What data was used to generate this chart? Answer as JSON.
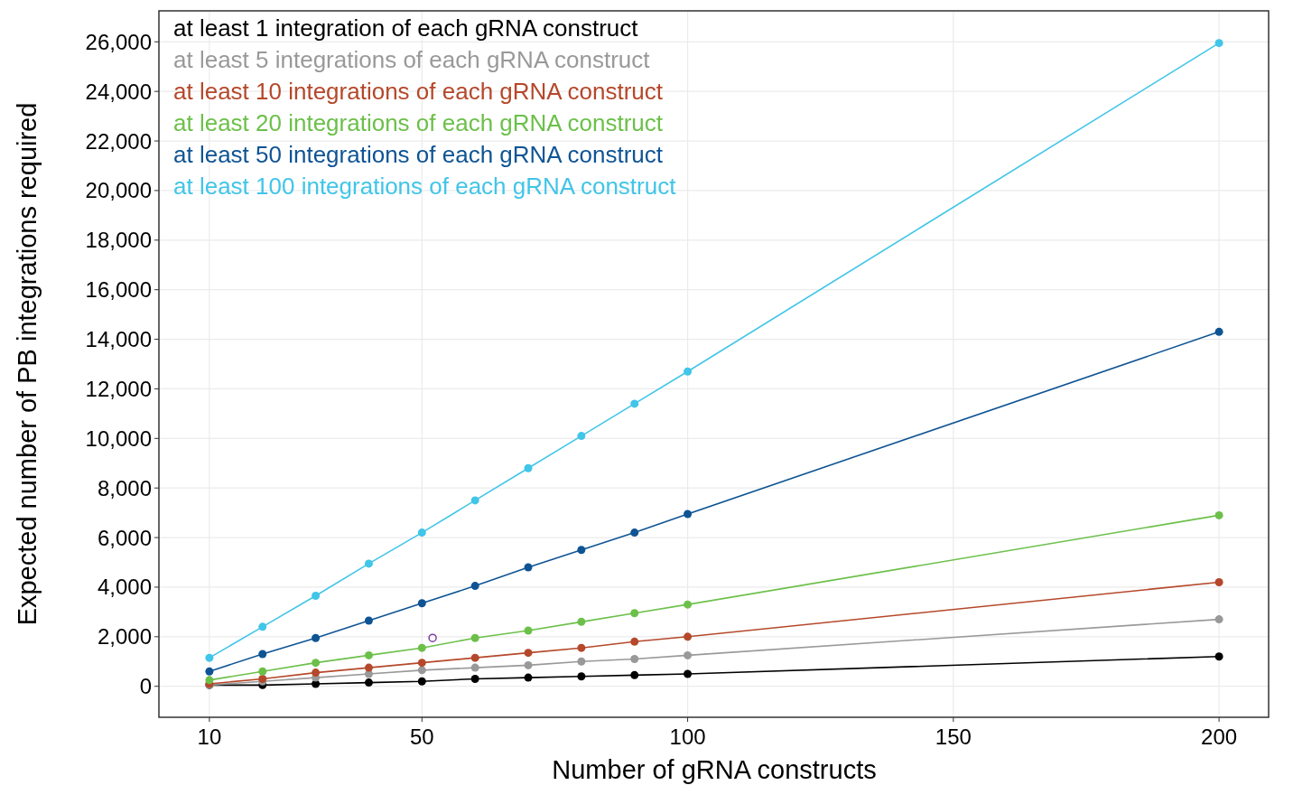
{
  "chart_data": {
    "type": "line",
    "xlabel": "Number of gRNA constructs",
    "ylabel": "Expected number of PB integrations required",
    "x": [
      10,
      20,
      30,
      40,
      50,
      60,
      70,
      80,
      90,
      100,
      200
    ],
    "series": [
      {
        "name": "at least 1 integration of each gRNA construct",
        "color": "#000000",
        "values": [
          50,
          50,
          100,
          150,
          200,
          300,
          350,
          400,
          450,
          500,
          1200
        ]
      },
      {
        "name": "at least 5 integrations of each gRNA construct",
        "color": "#999999",
        "values": [
          50,
          200,
          350,
          500,
          650,
          750,
          850,
          1000,
          1100,
          1250,
          2700
        ]
      },
      {
        "name": "at least 10 integrations of each gRNA construct",
        "color": "#b5482a",
        "values": [
          100,
          300,
          550,
          750,
          950,
          1150,
          1350,
          1550,
          1800,
          2000,
          4200
        ]
      },
      {
        "name": "at least 20 integrations of each gRNA construct",
        "color": "#6cc04a",
        "values": [
          250,
          600,
          950,
          1250,
          1550,
          1950,
          2250,
          2600,
          2950,
          3300,
          6900
        ]
      },
      {
        "name": "at least 50 integrations of each gRNA construct",
        "color": "#0e5494",
        "values": [
          600,
          1300,
          1950,
          2650,
          3350,
          4050,
          4800,
          5500,
          6200,
          6950,
          14300
        ]
      },
      {
        "name": "at least 100 integrations of each gRNA construct",
        "color": "#41c5e8",
        "values": [
          1150,
          2400,
          3650,
          4950,
          6200,
          7500,
          8800,
          10100,
          11400,
          12700,
          25950
        ]
      },
      {
        "type": "scatter",
        "color": "#7b3fa0",
        "x": [
          52
        ],
        "values": [
          1950
        ]
      }
    ],
    "xlim": [
      0.5,
      209.5
    ],
    "xticks": [
      10,
      50,
      100,
      150,
      200
    ],
    "ylim": [
      -1250,
      27250
    ],
    "yticks": [
      {
        "value": 0,
        "label": "0"
      },
      {
        "value": 2000,
        "label": "2,000"
      },
      {
        "value": 4000,
        "label": "4,000"
      },
      {
        "value": 6000,
        "label": "6,000"
      },
      {
        "value": 8000,
        "label": "8,000"
      },
      {
        "value": 10000,
        "label": "10,000"
      },
      {
        "value": 12000,
        "label": "12,000"
      },
      {
        "value": 14000,
        "label": "14,000"
      },
      {
        "value": 16000,
        "label": "16,000"
      },
      {
        "value": 18000,
        "label": "18,000"
      },
      {
        "value": 20000,
        "label": "20,000"
      },
      {
        "value": 22000,
        "label": "22,000"
      },
      {
        "value": 24000,
        "label": "24,000"
      },
      {
        "value": 26000,
        "label": "26,000"
      }
    ],
    "grid": true,
    "legend": "top left",
    "marker": "circle",
    "line_style": "solid"
  }
}
